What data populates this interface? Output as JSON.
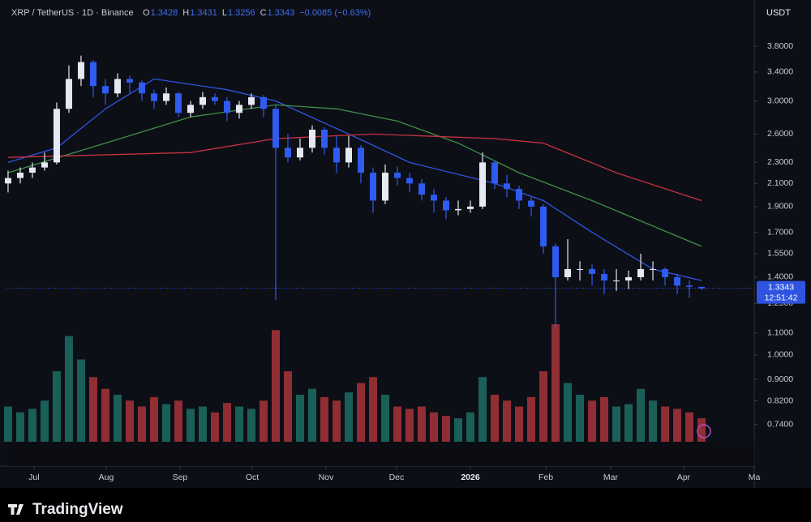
{
  "chart_data": {
    "type": "candlestick",
    "title": "XRP / TetherUS · 1D · Binance",
    "ohlc_letters": [
      "O",
      "H",
      "L",
      "C"
    ],
    "change": "−0.0085 (−0.63%)",
    "currency": "USDT",
    "countdown": "12:51:42",
    "log": true,
    "up_color": "#e6e9f2",
    "down_color": "#2f5bf0",
    "volume_up_color": "#1f6f64",
    "volume_down_color": "#a8343a",
    "open": [
      2.1,
      2.15,
      2.2,
      2.25,
      2.3,
      2.9,
      3.3,
      3.55,
      3.2,
      3.1,
      3.3,
      3.25,
      3.1,
      3.0,
      3.1,
      2.85,
      2.95,
      3.05,
      3.0,
      2.85,
      2.95,
      3.05,
      2.9,
      2.45,
      2.35,
      2.45,
      2.65,
      2.45,
      2.3,
      2.45,
      2.2,
      1.95,
      2.2,
      2.15,
      2.1,
      2.0,
      1.95,
      1.87,
      1.88,
      1.9,
      2.3,
      2.1,
      2.05,
      1.95,
      1.9,
      1.6,
      1.4,
      1.45,
      1.45,
      1.42,
      1.38,
      1.38,
      1.4,
      1.45,
      1.45,
      1.4,
      1.35,
      1.3428
    ],
    "high": [
      2.22,
      2.25,
      2.3,
      2.4,
      2.98,
      3.5,
      3.65,
      3.58,
      3.3,
      3.38,
      3.35,
      3.28,
      3.15,
      3.18,
      3.12,
      3.0,
      3.12,
      3.1,
      3.05,
      3.0,
      3.1,
      3.08,
      2.95,
      2.6,
      2.55,
      2.7,
      2.68,
      2.58,
      2.58,
      2.48,
      2.25,
      2.28,
      2.26,
      2.2,
      2.14,
      2.05,
      1.98,
      1.95,
      1.95,
      2.4,
      2.32,
      2.18,
      2.08,
      1.98,
      1.92,
      1.62,
      1.65,
      1.5,
      1.48,
      1.45,
      1.45,
      1.44,
      1.55,
      1.5,
      1.46,
      1.42,
      1.38,
      1.3431
    ],
    "low": [
      2.02,
      2.1,
      2.15,
      2.22,
      2.28,
      2.85,
      3.2,
      3.05,
      2.95,
      3.05,
      3.1,
      3.0,
      2.9,
      2.95,
      2.8,
      2.8,
      2.9,
      2.95,
      2.75,
      2.78,
      2.9,
      2.8,
      1.27,
      2.3,
      2.32,
      2.4,
      2.38,
      2.2,
      2.25,
      2.1,
      1.85,
      1.92,
      2.08,
      2.02,
      1.95,
      1.85,
      1.8,
      1.83,
      1.85,
      1.88,
      2.05,
      1.98,
      1.88,
      1.82,
      1.55,
      1.12,
      1.38,
      1.38,
      1.35,
      1.3,
      1.32,
      1.33,
      1.38,
      1.38,
      1.35,
      1.3,
      1.28,
      1.3256
    ],
    "close": [
      2.15,
      2.2,
      2.25,
      2.3,
      2.9,
      3.3,
      3.55,
      3.2,
      3.1,
      3.3,
      3.25,
      3.1,
      3.0,
      3.1,
      2.85,
      2.95,
      3.05,
      3.0,
      2.85,
      2.95,
      3.05,
      2.9,
      2.45,
      2.35,
      2.45,
      2.65,
      2.45,
      2.3,
      2.45,
      2.2,
      1.95,
      2.2,
      2.15,
      2.1,
      2.0,
      1.95,
      1.87,
      1.88,
      1.9,
      2.3,
      2.1,
      2.05,
      1.95,
      1.9,
      1.6,
      1.4,
      1.45,
      1.45,
      1.42,
      1.38,
      1.38,
      1.4,
      1.45,
      1.45,
      1.4,
      1.35,
      1.3428,
      1.3343
    ],
    "volume": [
      30,
      25,
      28,
      35,
      60,
      90,
      70,
      55,
      45,
      40,
      35,
      30,
      38,
      32,
      35,
      28,
      30,
      25,
      33,
      30,
      28,
      35,
      95,
      60,
      40,
      45,
      38,
      35,
      42,
      50,
      55,
      40,
      30,
      28,
      30,
      25,
      22,
      20,
      25,
      55,
      40,
      35,
      30,
      38,
      60,
      100,
      50,
      40,
      35,
      38,
      30,
      32,
      45,
      35,
      30,
      28,
      25,
      20
    ],
    "vlim": [
      0,
      100
    ],
    "series": [
      {
        "color": "#2f55e0",
        "x": [
          0,
          4,
          8,
          12,
          18,
          22,
          28,
          33,
          40,
          44,
          48,
          53,
          57
        ],
        "values": [
          2.3,
          2.45,
          2.9,
          3.3,
          3.15,
          3.0,
          2.6,
          2.3,
          2.1,
          1.95,
          1.7,
          1.45,
          1.38
        ]
      },
      {
        "color": "#3f8f4a",
        "x": [
          0,
          8,
          15,
          22,
          27,
          32,
          37,
          42,
          48,
          57
        ],
        "values": [
          2.2,
          2.5,
          2.8,
          2.95,
          2.9,
          2.75,
          2.5,
          2.2,
          1.95,
          1.6
        ]
      },
      {
        "color": "#c7323f",
        "x": [
          0,
          15,
          22,
          30,
          40,
          44,
          50,
          57
        ],
        "values": [
          2.35,
          2.4,
          2.55,
          2.6,
          2.55,
          2.5,
          2.2,
          1.95
        ]
      }
    ],
    "xlim": [
      -0.13,
      61.33
    ],
    "xticks": [
      {
        "value": 2.13,
        "label": "Jul"
      },
      {
        "value": 8.07,
        "label": "Aug"
      },
      {
        "value": 14.13,
        "label": "Sep"
      },
      {
        "value": 20.07,
        "label": "Oct"
      },
      {
        "value": 26.13,
        "label": "Nov"
      },
      {
        "value": 31.93,
        "label": "Dec"
      },
      {
        "value": 38,
        "label": "2026"
      },
      {
        "value": 44.2,
        "label": "Feb"
      },
      {
        "value": 49.53,
        "label": "Mar"
      },
      {
        "value": 55.53,
        "label": "Apr"
      },
      {
        "value": 61.33,
        "label": "Ma"
      }
    ],
    "ylim": [
      0.687,
      4.18
    ],
    "yticks": [
      {
        "value": 3.8,
        "label": "3.8000"
      },
      {
        "value": 3.4,
        "label": "3.4000"
      },
      {
        "value": 3.0,
        "label": "3.0000"
      },
      {
        "value": 2.6,
        "label": "2.6000"
      },
      {
        "value": 2.3,
        "label": "2.3000"
      },
      {
        "value": 2.1,
        "label": "2.1000"
      },
      {
        "value": 1.9,
        "label": "1.9000"
      },
      {
        "value": 1.7,
        "label": "1.7000"
      },
      {
        "value": 1.55,
        "label": "1.5500"
      },
      {
        "value": 1.4,
        "label": "1.4000"
      },
      {
        "value": 1.25,
        "label": "1.2500"
      },
      {
        "value": 1.1,
        "label": "1.1000"
      },
      {
        "value": 1.0,
        "label": "1.0000"
      },
      {
        "value": 0.9,
        "label": "0.9000"
      },
      {
        "value": 0.82,
        "label": "0.8200"
      },
      {
        "value": 0.74,
        "label": "0.7400"
      }
    ]
  },
  "brand": "TradingView"
}
